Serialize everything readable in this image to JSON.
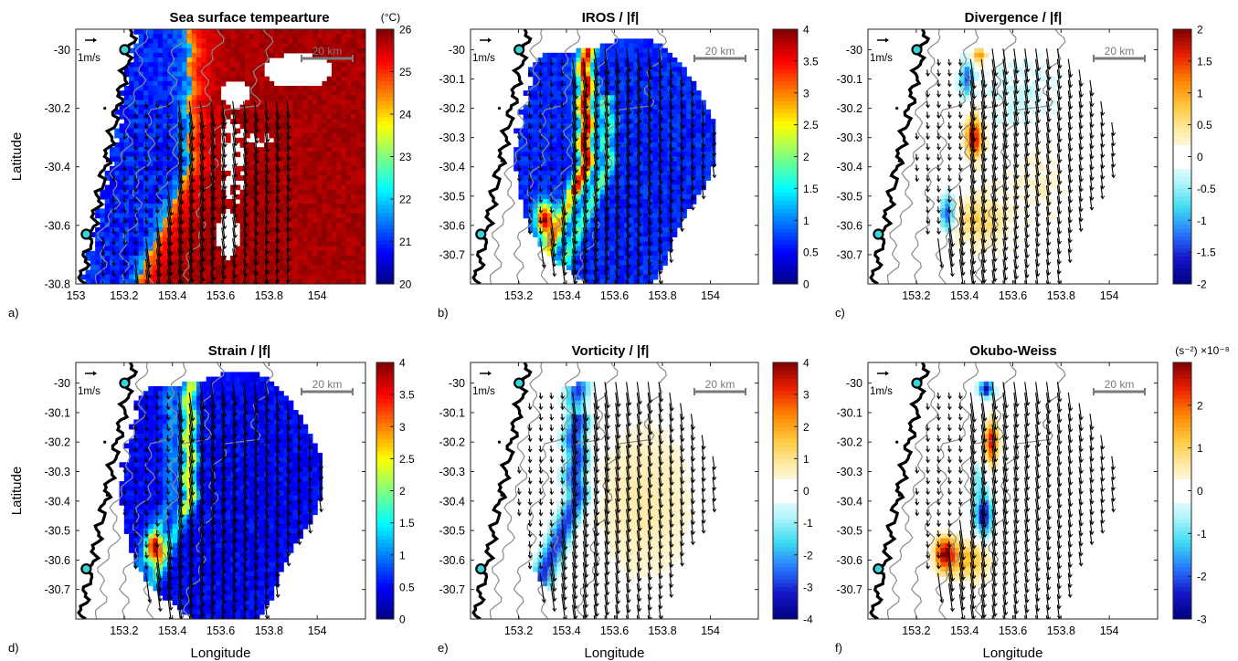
{
  "figure": {
    "axis_labels": {
      "latitude": "Latitude",
      "longitude": "Longitude"
    },
    "annotations": {
      "scale_bar": "20 km",
      "velocity_ref": "1m/s"
    }
  },
  "chart_data": [
    {
      "id": "a",
      "panel_label": "a)",
      "type": "heatmap",
      "title": "Sea surface tempearture",
      "colorbar_label": "(°C)",
      "xlabel": "",
      "ylabel": "Latitude",
      "xlim": [
        153,
        154.2
      ],
      "ylim": [
        -30.8,
        -29.93
      ],
      "xticks": [
        "153",
        "153.2",
        "153.4",
        "153.6",
        "153.8",
        "154"
      ],
      "yticks": [
        "-30",
        "-30.2",
        "-30.4",
        "-30.6",
        "-30.8"
      ],
      "cbar_range": [
        20,
        26
      ],
      "cbar_ticks": [
        "20",
        "21",
        "22",
        "23",
        "24",
        "25",
        "26"
      ],
      "field": "sst"
    },
    {
      "id": "b",
      "panel_label": "b)",
      "type": "heatmap",
      "title": "IROS / |f|",
      "colorbar_label": "",
      "xlabel": "",
      "ylabel": "",
      "xlim": [
        153,
        154.2
      ],
      "ylim": [
        -30.8,
        -29.93
      ],
      "xticks": [
        "153.2",
        "153.4",
        "153.6",
        "153.8",
        "154"
      ],
      "yticks": [
        "-30",
        "-30.1",
        "-30.2",
        "-30.3",
        "-30.4",
        "-30.5",
        "-30.6",
        "-30.7"
      ],
      "cbar_range": [
        0,
        4
      ],
      "cbar_ticks": [
        "0",
        "0.5",
        "1",
        "1.5",
        "2",
        "2.5",
        "3",
        "3.5",
        "4"
      ],
      "field": "iros"
    },
    {
      "id": "c",
      "panel_label": "c)",
      "type": "heatmap",
      "title": "Divergence / |f|",
      "colorbar_label": "",
      "xlabel": "",
      "ylabel": "",
      "xlim": [
        153,
        154.2
      ],
      "ylim": [
        -30.8,
        -29.93
      ],
      "xticks": [
        "153.2",
        "153.4",
        "153.6",
        "153.8",
        "154"
      ],
      "yticks": [
        "-30",
        "-30.1",
        "-30.2",
        "-30.3",
        "-30.4",
        "-30.5",
        "-30.6",
        "-30.7"
      ],
      "cbar_range": [
        -2,
        2
      ],
      "cbar_ticks": [
        "-2",
        "-1.5",
        "-1",
        "-0.5",
        "0",
        "0.5",
        "1",
        "1.5",
        "2"
      ],
      "field": "div"
    },
    {
      "id": "d",
      "panel_label": "d)",
      "type": "heatmap",
      "title": "Strain / |f|",
      "colorbar_label": "",
      "xlabel": "Longitude",
      "ylabel": "Latitude",
      "xlim": [
        153,
        154.2
      ],
      "ylim": [
        -30.8,
        -29.93
      ],
      "xticks": [
        "153.2",
        "153.4",
        "153.6",
        "153.8",
        "154"
      ],
      "yticks": [
        "-30",
        "-30.1",
        "-30.2",
        "-30.3",
        "-30.4",
        "-30.5",
        "-30.6",
        "-30.7"
      ],
      "cbar_range": [
        0,
        4
      ],
      "cbar_ticks": [
        "0",
        "0.5",
        "1",
        "1.5",
        "2",
        "2.5",
        "3",
        "3.5",
        "4"
      ],
      "field": "strain"
    },
    {
      "id": "e",
      "panel_label": "e)",
      "type": "heatmap",
      "title": "Vorticity / |f|",
      "colorbar_label": "",
      "xlabel": "Longitude",
      "ylabel": "",
      "xlim": [
        153,
        154.2
      ],
      "ylim": [
        -30.8,
        -29.93
      ],
      "xticks": [
        "153.2",
        "153.4",
        "153.6",
        "153.8",
        "154"
      ],
      "yticks": [
        "-30",
        "-30.1",
        "-30.2",
        "-30.3",
        "-30.4",
        "-30.5",
        "-30.6",
        "-30.7"
      ],
      "cbar_range": [
        -4,
        4
      ],
      "cbar_ticks": [
        "-4",
        "-3",
        "-2",
        "-1",
        "0",
        "1",
        "2",
        "3",
        "4"
      ],
      "field": "vort"
    },
    {
      "id": "f",
      "panel_label": "f)",
      "type": "heatmap",
      "title": "Okubo-Weiss",
      "colorbar_label": "(s⁻²) ×10⁻⁸",
      "xlabel": "Longitude",
      "ylabel": "",
      "xlim": [
        153,
        154.2
      ],
      "ylim": [
        -30.8,
        -29.93
      ],
      "xticks": [
        "153.2",
        "153.4",
        "153.6",
        "153.8",
        "154"
      ],
      "yticks": [
        "-30",
        "-30.1",
        "-30.2",
        "-30.3",
        "-30.4",
        "-30.5",
        "-30.6",
        "-30.7"
      ],
      "cbar_range": [
        -3,
        3
      ],
      "cbar_ticks": [
        "-3",
        "-2",
        "-1",
        "0",
        "1",
        "2"
      ],
      "field": "ow"
    }
  ]
}
